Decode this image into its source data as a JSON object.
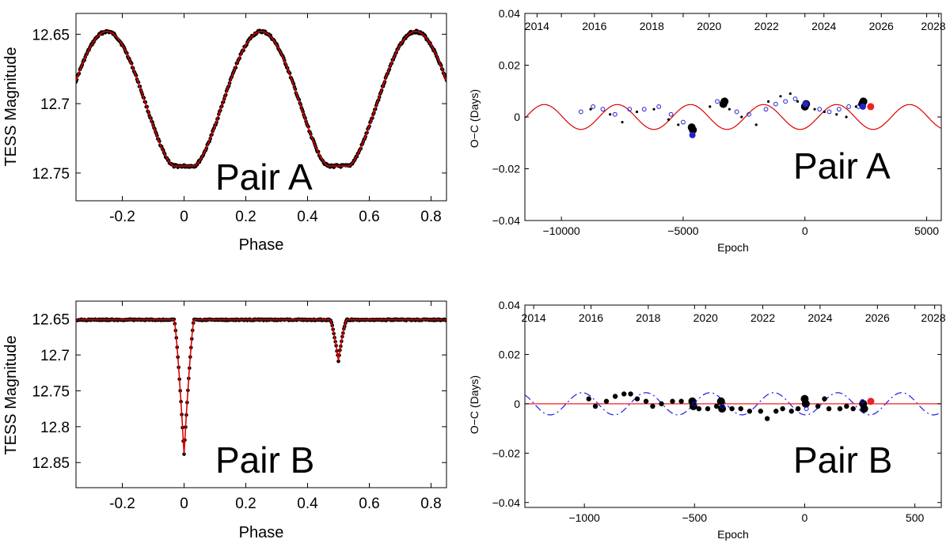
{
  "chart_data": [
    {
      "id": "lc_a",
      "type": "scatter",
      "panel": "top-left",
      "label": "Pair A",
      "xlabel": "Phase",
      "ylabel": "TESS Magnitude",
      "xlim": [
        -0.35,
        0.85
      ],
      "ylim": [
        12.77,
        12.635
      ],
      "y_reversed": true,
      "xticks": [
        -0.2,
        0,
        0.2,
        0.4,
        0.6,
        0.8
      ],
      "xtick_labels": [
        "-0.2",
        "0",
        "0.2",
        "0.4",
        "0.6",
        "0.8"
      ],
      "yticks": [
        12.65,
        12.7,
        12.75
      ],
      "ytick_labels": [
        "12.65",
        "12.7",
        "12.75"
      ],
      "model": {
        "name": "model",
        "color": "#dd0000",
        "base": 12.648,
        "primary_depth": 0.097,
        "secondary_depth": 0.097,
        "width": 0.135,
        "flat": 0.032
      },
      "points_color": "#000000"
    },
    {
      "id": "oc_a",
      "type": "scatter",
      "panel": "top-right",
      "label": "Pair A",
      "xlabel": "Epoch",
      "ylabel": "O−C (Days)",
      "xlim": [
        -11500,
        5600
      ],
      "ylim": [
        -0.04,
        0.04
      ],
      "xticks": [
        -10000,
        -5000,
        0,
        5000
      ],
      "xtick_labels": [
        "−10000",
        "−5000",
        "0",
        "5000"
      ],
      "yticks": [
        -0.04,
        -0.02,
        0,
        0.02,
        0.04
      ],
      "ytick_labels": [
        "−0.04",
        "−0.02",
        "0",
        "0.02",
        "0.04"
      ],
      "top_axis": {
        "ticks": [
          2014,
          2016,
          2018,
          2020,
          2022,
          2024,
          2026,
          2028
        ],
        "labels": [
          "2014",
          "2016",
          "2018",
          "2020",
          "2022",
          "2024",
          "2026",
          "2028"
        ],
        "epoch_at_2014": -11000,
        "epochs_per_year": 1178
      },
      "model": {
        "name": "LTTE fit",
        "color": "#dd0000",
        "style": "solid",
        "amplitude": 0.0048,
        "period_epochs": 3000,
        "phase_epoch": -1700
      },
      "series": [
        {
          "name": "ground small dots",
          "color": "#000000",
          "marker": "dot-small",
          "points": [
            [
              -8800,
              0.003
            ],
            [
              -8000,
              0.001
            ],
            [
              -7500,
              -0.002
            ],
            [
              -6900,
              0.002
            ],
            [
              -6200,
              0.003
            ],
            [
              -5600,
              -0.001
            ],
            [
              -5200,
              -0.003
            ],
            [
              -4700,
              -0.004
            ],
            [
              -3900,
              0.004
            ],
            [
              -3100,
              0.003
            ],
            [
              -2600,
              0.0
            ],
            [
              -2000,
              -0.003
            ],
            [
              -1500,
              0.006
            ],
            [
              -1000,
              0.008
            ],
            [
              -600,
              0.009
            ],
            [
              -300,
              0.006
            ],
            [
              400,
              0.003
            ],
            [
              800,
              0.002
            ],
            [
              1300,
              0.001
            ],
            [
              1700,
              0.0
            ],
            [
              2100,
              0.004
            ]
          ]
        },
        {
          "name": "open circles",
          "color": "#2222cc",
          "marker": "open",
          "points": [
            [
              -9200,
              0.002
            ],
            [
              -8700,
              0.004
            ],
            [
              -8300,
              0.003
            ],
            [
              -7800,
              0.001
            ],
            [
              -7200,
              0.003
            ],
            [
              -6600,
              0.003
            ],
            [
              -6000,
              0.004
            ],
            [
              -5500,
              0.001
            ],
            [
              -5000,
              -0.002
            ],
            [
              -3600,
              0.006
            ],
            [
              -2800,
              0.002
            ],
            [
              -2300,
              0.001
            ],
            [
              -1600,
              0.003
            ],
            [
              -1200,
              0.005
            ],
            [
              -800,
              0.006
            ],
            [
              -400,
              0.007
            ],
            [
              600,
              0.003
            ],
            [
              1000,
              0.002
            ],
            [
              1400,
              0.003
            ],
            [
              1800,
              0.004
            ],
            [
              2200,
              0.004
            ]
          ]
        },
        {
          "name": "TESS big dots",
          "color": "#000000",
          "marker": "dot-big",
          "points": [
            [
              -4600,
              -0.005
            ],
            [
              -4650,
              -0.004
            ],
            [
              -3300,
              0.006
            ],
            [
              -3350,
              0.005
            ],
            [
              0,
              0.004
            ],
            [
              50,
              0.005
            ],
            [
              2350,
              0.005
            ],
            [
              2400,
              0.006
            ]
          ]
        },
        {
          "name": "blue filled",
          "color": "#2222cc",
          "marker": "dot-blue",
          "points": [
            [
              -4620,
              -0.007
            ],
            [
              30,
              0.005
            ],
            [
              2380,
              0.004
            ]
          ]
        },
        {
          "name": "latest",
          "color": "#ee2222",
          "marker": "dot-red",
          "points": [
            [
              2700,
              0.004
            ]
          ]
        }
      ]
    },
    {
      "id": "lc_b",
      "type": "scatter",
      "panel": "bottom-left",
      "label": "Pair B",
      "xlabel": "Phase",
      "ylabel": "TESS Magnitude",
      "xlim": [
        -0.35,
        0.85
      ],
      "ylim": [
        12.885,
        12.625
      ],
      "y_reversed": true,
      "xticks": [
        -0.2,
        0,
        0.2,
        0.4,
        0.6,
        0.8
      ],
      "xtick_labels": [
        "-0.2",
        "0",
        "0.2",
        "0.4",
        "0.6",
        "0.8"
      ],
      "yticks": [
        12.65,
        12.7,
        12.75,
        12.8,
        12.85
      ],
      "ytick_labels": [
        "12.65",
        "12.7",
        "12.75",
        "12.8",
        "12.85"
      ],
      "model": {
        "name": "model",
        "color": "#dd0000",
        "base": 12.651,
        "primary_depth": 0.187,
        "primary_width": 0.032,
        "secondary_depth": 0.057,
        "secondary_width": 0.027
      },
      "points_color": "#000000"
    },
    {
      "id": "oc_b",
      "type": "scatter",
      "panel": "bottom-right",
      "label": "Pair B",
      "xlabel": "Epoch",
      "ylabel": "O−C (Days)",
      "xlim": [
        -1270,
        620
      ],
      "ylim": [
        -0.042,
        0.04
      ],
      "xticks": [
        -1000,
        -500,
        0,
        500
      ],
      "xtick_labels": [
        "−1000",
        "−500",
        "0",
        "500"
      ],
      "yticks": [
        -0.04,
        -0.02,
        0,
        0.02,
        0.04
      ],
      "ytick_labels": [
        "−0.04",
        "−0.02",
        "0",
        "0.02",
        "0.04"
      ],
      "top_axis": {
        "ticks": [
          2014,
          2016,
          2018,
          2020,
          2022,
          2024,
          2026,
          2028
        ],
        "labels": [
          "2014",
          "2016",
          "2018",
          "2020",
          "2022",
          "2024",
          "2026",
          "2028"
        ],
        "epoch_at_2014": -1230,
        "epochs_per_year": 130
      },
      "model": {
        "name": "linear",
        "color": "#ee2222",
        "style": "solid",
        "value": 0
      },
      "model2": {
        "name": "LTTE (dash-dot)",
        "color": "#1a1aee",
        "style": "dashdot",
        "amplitude": 0.0045,
        "period_epochs": 290,
        "phase_epoch": -1300
      },
      "series": [
        {
          "name": "ground",
          "color": "#000000",
          "marker": "dot-mid",
          "points": [
            [
              -980,
              0.002
            ],
            [
              -950,
              -0.001
            ],
            [
              -900,
              0.001
            ],
            [
              -860,
              0.003
            ],
            [
              -820,
              0.004
            ],
            [
              -790,
              0.004
            ],
            [
              -760,
              0.002
            ],
            [
              -720,
              0.001
            ],
            [
              -690,
              -0.001
            ],
            [
              -650,
              0.0
            ],
            [
              -600,
              0.001
            ],
            [
              -560,
              0.001
            ],
            [
              -480,
              -0.002
            ],
            [
              -440,
              -0.002
            ],
            [
              -400,
              -0.001
            ],
            [
              -330,
              -0.002
            ],
            [
              -290,
              -0.002
            ],
            [
              -250,
              -0.003
            ],
            [
              -200,
              -0.003
            ],
            [
              -170,
              -0.006
            ],
            [
              -130,
              -0.003
            ],
            [
              -100,
              -0.002
            ],
            [
              -60,
              -0.003
            ],
            [
              -30,
              -0.002
            ],
            [
              60,
              -0.001
            ],
            [
              90,
              0.002
            ],
            [
              110,
              -0.002
            ],
            [
              160,
              -0.002
            ],
            [
              190,
              -0.001
            ],
            [
              220,
              -0.002
            ]
          ]
        },
        {
          "name": "TESS",
          "color": "#000000",
          "marker": "dot-big",
          "points": [
            [
              -510,
              0.001
            ],
            [
              -505,
              -0.001
            ],
            [
              -380,
              0.001
            ],
            [
              -375,
              -0.002
            ],
            [
              0,
              0.002
            ],
            [
              5,
              0.0
            ],
            [
              265,
              0.0
            ],
            [
              270,
              -0.002
            ]
          ]
        },
        {
          "name": "blue",
          "color": "#1a1aee",
          "marker": "open",
          "points": [
            [
              -500,
              0.0
            ],
            [
              -372,
              -0.001
            ],
            [
              8,
              -0.002
            ],
            [
              262,
              0.001
            ]
          ]
        },
        {
          "name": "latest",
          "color": "#ee2222",
          "marker": "dot-red",
          "points": [
            [
              300,
              0.001
            ]
          ]
        }
      ]
    }
  ]
}
